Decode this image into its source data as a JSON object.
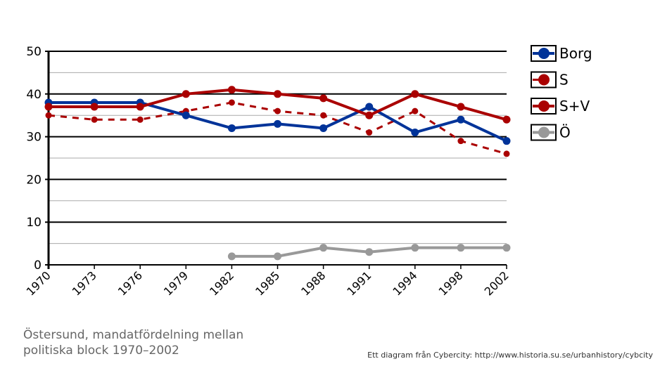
{
  "chart_data": {
    "type": "line",
    "title": "Östersund, mandatfördelning mellan politiska block 1970–2002",
    "title_lines": [
      "Östersund, mandatfördelning mellan",
      "politiska block 1970–2002"
    ],
    "credit": "Ett diagram från Cybercity: http://www.historia.su.se/urbanhistory/cybcity",
    "categories": [
      "1970",
      "1973",
      "1976",
      "1979",
      "1982",
      "1985",
      "1988",
      "1991",
      "1994",
      "1998",
      "2002"
    ],
    "ylim": [
      0,
      50
    ],
    "yticks": [
      0,
      10,
      20,
      30,
      40,
      50
    ],
    "legend_position": "right",
    "series": [
      {
        "name": "Borg",
        "color": "#003399",
        "style": "solid",
        "values": [
          38,
          38,
          38,
          35,
          32,
          33,
          32,
          37,
          31,
          34,
          29
        ]
      },
      {
        "name": "S",
        "color": "#aa0000",
        "style": "dashed",
        "values": [
          35,
          34,
          34,
          36,
          38,
          36,
          35,
          31,
          36,
          29,
          26
        ]
      },
      {
        "name": "S+V",
        "color": "#aa0000",
        "style": "solid",
        "values": [
          37,
          37,
          37,
          40,
          41,
          40,
          39,
          35,
          40,
          37,
          34
        ]
      },
      {
        "name": "Ö",
        "color": "#999999",
        "style": "solid",
        "values": [
          null,
          null,
          null,
          null,
          2,
          2,
          4,
          3,
          4,
          4,
          4
        ]
      }
    ]
  }
}
